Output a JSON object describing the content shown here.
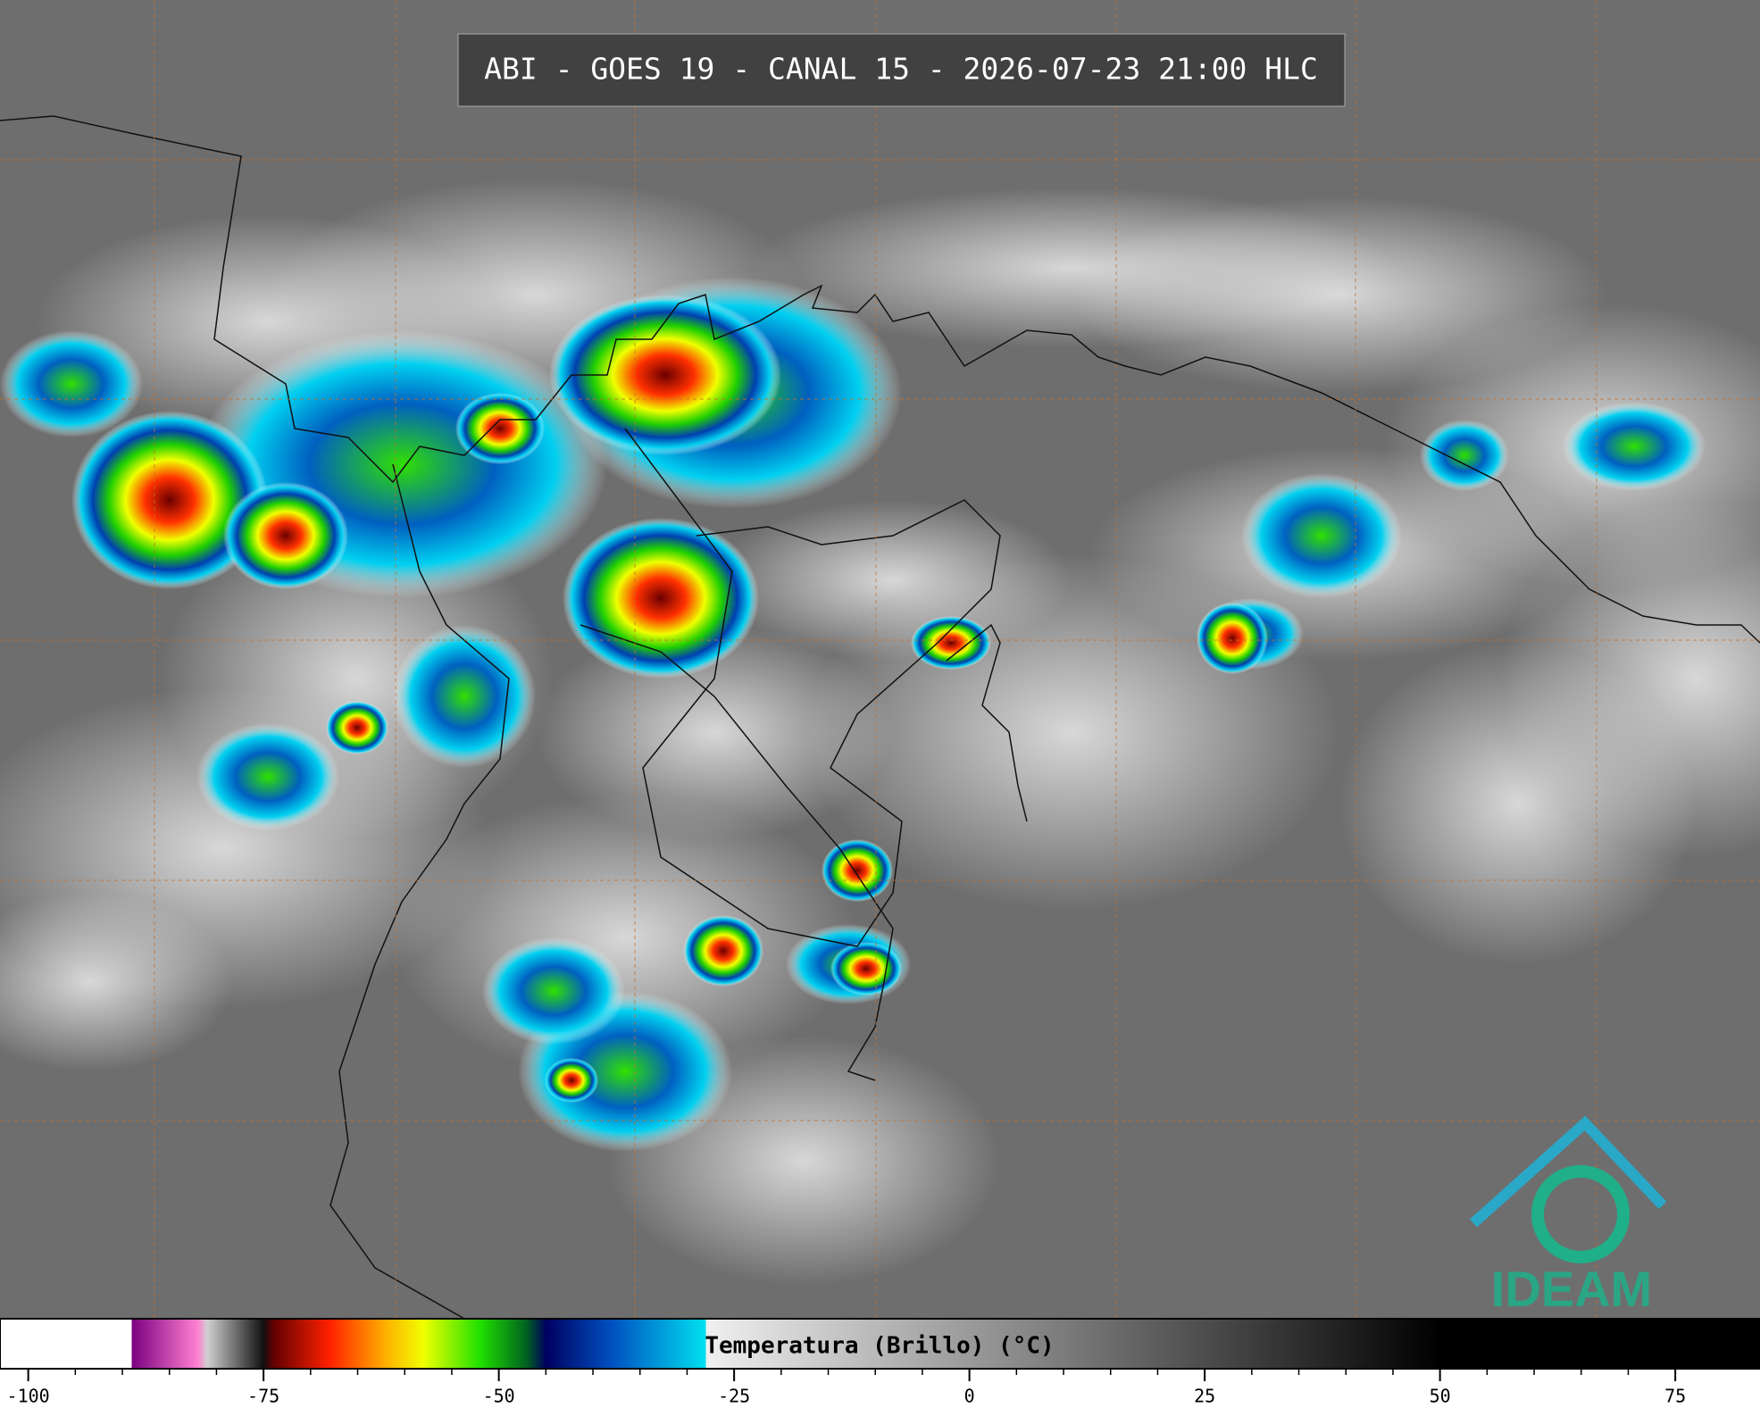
{
  "title": "ABI - GOES 19 - CANAL 15 - 2026-07-23 21:00 HLC",
  "colorbar": {
    "label": "Temperatura (Brillo) (°C)",
    "lim": [
      -103,
      84
    ],
    "ticks": [
      -100,
      -75,
      -50,
      -25,
      0,
      25,
      50,
      75
    ],
    "stops": [
      {
        "value": -89,
        "color": "#ffffff"
      },
      {
        "value": -89,
        "color": "#7a0080"
      },
      {
        "value": -82,
        "color": "#ff80d0"
      },
      {
        "value": -81,
        "color": "#d0d0d0"
      },
      {
        "value": -75,
        "color": "#101010"
      },
      {
        "value": -74,
        "color": "#600000"
      },
      {
        "value": -68,
        "color": "#ff2000"
      },
      {
        "value": -62,
        "color": "#ffb000"
      },
      {
        "value": -58,
        "color": "#f0ff00"
      },
      {
        "value": -52,
        "color": "#20e000"
      },
      {
        "value": -47,
        "color": "#006020"
      },
      {
        "value": -45,
        "color": "#000060"
      },
      {
        "value": -38,
        "color": "#0050c0"
      },
      {
        "value": -28,
        "color": "#00e0f0"
      },
      {
        "value": -28,
        "color": "#f0f0f0"
      },
      {
        "value": 50,
        "color": "#000000"
      }
    ]
  },
  "logo": "IDEAM"
}
